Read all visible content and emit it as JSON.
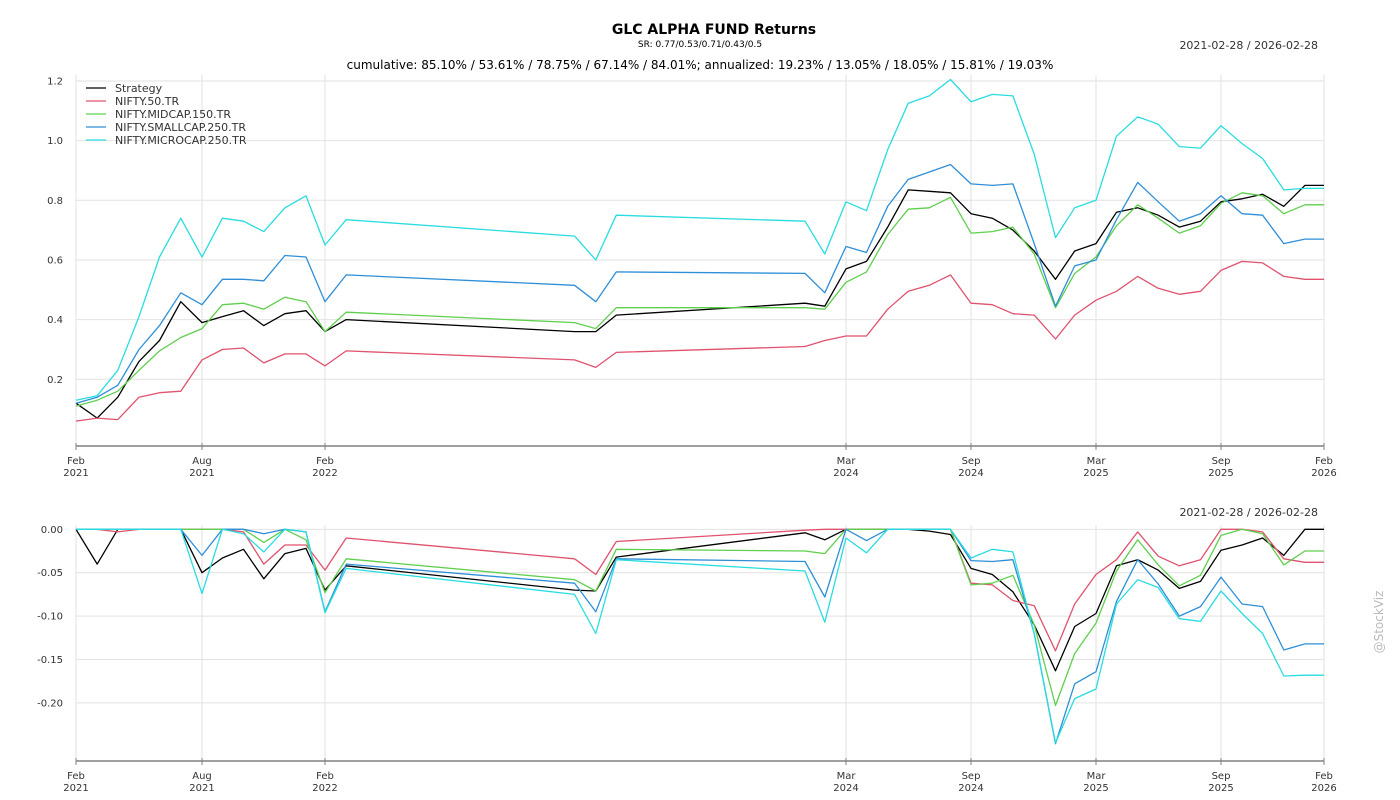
{
  "title": "GLC ALPHA FUND Returns",
  "sr_text": "SR: 0.77/0.53/0.71/0.43/0.5",
  "subtitle": "cumulative: 85.10% / 53.61% / 78.75% / 67.14% / 84.01%; annualized: 19.23% / 13.05% / 18.05% / 15.81% / 19.03%",
  "date_range_top": "2021-02-28 / 2026-02-28",
  "date_range_bottom": "2021-02-28 / 2026-02-28",
  "watermark": "@StockViz",
  "chart_data": [
    {
      "type": "line",
      "x": [
        "2021-02-28",
        "2021-03-31",
        "2021-04-30",
        "2021-05-31",
        "2021-06-30",
        "2021-07-31",
        "2021-08-31",
        "2021-09-30",
        "2021-10-31",
        "2021-11-30",
        "2021-12-31",
        "2022-01-31",
        "2022-02-28",
        "2022-03-31",
        "2023-02-28",
        "2023-03-31",
        "2023-04-30",
        "2024-01-31",
        "2024-02-29",
        "2024-03-31",
        "2024-04-30",
        "2024-05-31",
        "2024-06-30",
        "2024-07-31",
        "2024-08-31",
        "2024-09-30",
        "2024-10-31",
        "2024-11-30",
        "2024-12-31",
        "2025-01-31",
        "2025-02-28",
        "2025-03-31",
        "2025-04-30",
        "2025-05-31",
        "2025-06-30",
        "2025-07-31",
        "2025-08-31",
        "2025-09-30",
        "2025-10-31",
        "2025-11-30",
        "2025-12-31",
        "2026-01-31",
        "2026-02-28"
      ],
      "series": [
        {
          "name": "Strategy",
          "color": "#000000",
          "values": [
            0.12,
            0.07,
            0.14,
            0.26,
            0.33,
            0.46,
            0.39,
            0.41,
            0.43,
            0.38,
            0.42,
            0.43,
            0.36,
            0.4,
            0.36,
            0.36,
            0.415,
            0.455,
            0.445,
            0.57,
            0.595,
            0.71,
            0.835,
            0.83,
            0.825,
            0.755,
            0.74,
            0.7,
            0.63,
            0.535,
            0.63,
            0.655,
            0.76,
            0.775,
            0.75,
            0.71,
            0.73,
            0.795,
            0.805,
            0.82,
            0.78,
            0.85,
            0.85
          ]
        },
        {
          "name": "NIFTY.50.TR",
          "color": "#e0526e",
          "values": [
            0.06,
            0.07,
            0.065,
            0.14,
            0.155,
            0.16,
            0.265,
            0.3,
            0.305,
            0.255,
            0.285,
            0.285,
            0.245,
            0.295,
            0.265,
            0.24,
            0.29,
            0.31,
            0.33,
            0.345,
            0.345,
            0.435,
            0.495,
            0.515,
            0.55,
            0.455,
            0.45,
            0.42,
            0.415,
            0.335,
            0.415,
            0.465,
            0.495,
            0.545,
            0.505,
            0.485,
            0.495,
            0.565,
            0.595,
            0.59,
            0.545,
            0.535,
            0.535
          ]
        },
        {
          "name": "NIFTY.MIDCAP.150.TR",
          "color": "#5fcf4d",
          "values": [
            0.11,
            0.13,
            0.16,
            0.23,
            0.295,
            0.34,
            0.37,
            0.45,
            0.455,
            0.435,
            0.475,
            0.46,
            0.36,
            0.425,
            0.39,
            0.37,
            0.44,
            0.44,
            0.435,
            0.525,
            0.56,
            0.685,
            0.77,
            0.775,
            0.81,
            0.69,
            0.695,
            0.71,
            0.62,
            0.44,
            0.555,
            0.61,
            0.715,
            0.785,
            0.74,
            0.69,
            0.715,
            0.79,
            0.825,
            0.815,
            0.755,
            0.785,
            0.785
          ]
        },
        {
          "name": "NIFTY.SMALLCAP.250.TR",
          "color": "#2e8fd8",
          "values": [
            0.12,
            0.14,
            0.18,
            0.3,
            0.38,
            0.49,
            0.45,
            0.535,
            0.535,
            0.53,
            0.615,
            0.61,
            0.46,
            0.55,
            0.515,
            0.46,
            0.56,
            0.555,
            0.49,
            0.645,
            0.625,
            0.78,
            0.87,
            0.895,
            0.92,
            0.855,
            0.85,
            0.855,
            0.655,
            0.445,
            0.58,
            0.6,
            0.735,
            0.86,
            0.795,
            0.73,
            0.755,
            0.815,
            0.755,
            0.75,
            0.655,
            0.67,
            0.67
          ]
        },
        {
          "name": "NIFTY.MICROCAP.250.TR",
          "color": "#29dce0",
          "values": [
            0.13,
            0.145,
            0.23,
            0.41,
            0.61,
            0.74,
            0.61,
            0.74,
            0.73,
            0.695,
            0.775,
            0.815,
            0.65,
            0.735,
            0.68,
            0.6,
            0.75,
            0.73,
            0.62,
            0.795,
            0.765,
            0.97,
            1.125,
            1.15,
            1.205,
            1.13,
            1.155,
            1.15,
            0.955,
            0.675,
            0.775,
            0.8,
            1.015,
            1.08,
            1.055,
            0.98,
            0.975,
            1.05,
            0.99,
            0.94,
            0.835,
            0.84,
            0.84
          ]
        }
      ],
      "ylim": [
        0.03,
        1.22
      ],
      "yticks": [
        "0.2",
        "0.4",
        "0.6",
        "0.8",
        "1.0",
        "1.2"
      ],
      "xticks": [
        {
          "month": "Feb",
          "year": "2021"
        },
        {
          "month": "Aug",
          "year": "2021"
        },
        {
          "month": "Feb",
          "year": "2022"
        },
        {
          "month": "Mar",
          "year": "2024"
        },
        {
          "month": "Sep",
          "year": "2024"
        },
        {
          "month": "Mar",
          "year": "2025"
        },
        {
          "month": "Sep",
          "year": "2025"
        },
        {
          "month": "Feb",
          "year": "2026"
        }
      ],
      "grid": true,
      "legend": "top-left"
    },
    {
      "type": "line",
      "x": [
        "2021-02-28",
        "2021-03-31",
        "2021-04-30",
        "2021-05-31",
        "2021-06-30",
        "2021-07-31",
        "2021-08-31",
        "2021-09-30",
        "2021-10-31",
        "2021-11-30",
        "2021-12-31",
        "2022-01-31",
        "2022-02-28",
        "2022-03-31",
        "2023-02-28",
        "2023-03-31",
        "2023-04-30",
        "2024-01-31",
        "2024-02-29",
        "2024-03-31",
        "2024-04-30",
        "2024-05-31",
        "2024-06-30",
        "2024-07-31",
        "2024-08-31",
        "2024-09-30",
        "2024-10-31",
        "2024-11-30",
        "2024-12-31",
        "2025-01-31",
        "2025-02-28",
        "2025-03-31",
        "2025-04-30",
        "2025-05-31",
        "2025-06-30",
        "2025-07-31",
        "2025-08-31",
        "2025-09-30",
        "2025-10-31",
        "2025-11-30",
        "2025-12-31",
        "2026-01-31",
        "2026-02-28"
      ],
      "series": [
        {
          "name": "Strategy",
          "color": "#000000",
          "values": [
            0,
            -0.04,
            0,
            0,
            0,
            0,
            -0.05,
            -0.033,
            -0.023,
            -0.057,
            -0.028,
            -0.022,
            -0.07,
            -0.042,
            -0.07,
            -0.071,
            -0.032,
            -0.004,
            -0.012,
            0,
            0,
            0,
            0,
            -0.002,
            -0.006,
            -0.045,
            -0.052,
            -0.072,
            -0.11,
            -0.163,
            -0.112,
            -0.097,
            -0.042,
            -0.035,
            -0.047,
            -0.068,
            -0.06,
            -0.024,
            -0.018,
            -0.01,
            -0.03,
            0,
            0
          ]
        },
        {
          "name": "NIFTY.50.TR",
          "color": "#e0526e",
          "values": [
            0,
            0,
            -0.003,
            0,
            0,
            0,
            0,
            0,
            -0.003,
            -0.04,
            -0.018,
            -0.018,
            -0.047,
            -0.01,
            -0.034,
            -0.052,
            -0.014,
            -0.001,
            0,
            0,
            0,
            0,
            0,
            0,
            0,
            -0.062,
            -0.064,
            -0.082,
            -0.088,
            -0.14,
            -0.086,
            -0.052,
            -0.035,
            -0.003,
            -0.031,
            -0.042,
            -0.035,
            0,
            0,
            -0.003,
            -0.034,
            -0.038,
            -0.038
          ]
        },
        {
          "name": "NIFTY.MIDCAP.150.TR",
          "color": "#5fcf4d",
          "values": [
            0,
            0,
            0,
            0,
            0,
            0,
            0,
            0,
            0,
            -0.015,
            0,
            -0.012,
            -0.073,
            -0.034,
            -0.058,
            -0.071,
            -0.023,
            -0.025,
            -0.028,
            0,
            0,
            0,
            0,
            0,
            0,
            -0.064,
            -0.062,
            -0.053,
            -0.11,
            -0.203,
            -0.143,
            -0.108,
            -0.048,
            -0.012,
            -0.041,
            -0.065,
            -0.053,
            -0.007,
            0,
            -0.005,
            -0.041,
            -0.025,
            -0.025
          ]
        },
        {
          "name": "NIFTY.SMALLCAP.250.TR",
          "color": "#2e8fd8",
          "values": [
            0,
            0,
            0,
            0,
            0,
            0,
            -0.03,
            0,
            0,
            -0.005,
            0,
            -0.003,
            -0.095,
            -0.04,
            -0.062,
            -0.095,
            -0.034,
            -0.037,
            -0.078,
            0,
            -0.013,
            0,
            0,
            0,
            0,
            -0.036,
            -0.037,
            -0.035,
            -0.12,
            -0.247,
            -0.178,
            -0.164,
            -0.083,
            -0.035,
            -0.063,
            -0.1,
            -0.089,
            -0.055,
            -0.086,
            -0.089,
            -0.139,
            -0.132,
            -0.132
          ]
        },
        {
          "name": "NIFTY.MICROCAP.250.TR",
          "color": "#29dce0",
          "values": [
            0,
            0,
            0,
            0,
            0,
            0,
            -0.074,
            0,
            -0.005,
            -0.026,
            0,
            -0.003,
            -0.096,
            -0.045,
            -0.075,
            -0.12,
            -0.035,
            -0.048,
            -0.107,
            -0.01,
            -0.027,
            0,
            0,
            0,
            0,
            -0.033,
            -0.023,
            -0.026,
            -0.12,
            -0.246,
            -0.195,
            -0.184,
            -0.086,
            -0.058,
            -0.067,
            -0.103,
            -0.106,
            -0.071,
            -0.097,
            -0.12,
            -0.169,
            -0.168,
            -0.168
          ]
        }
      ],
      "ylim": [
        -0.26,
        0.005
      ],
      "yticks": [
        "-0.20",
        "-0.15",
        "-0.10",
        "-0.05",
        "0.00"
      ],
      "xticks": [
        {
          "month": "Feb",
          "year": "2021"
        },
        {
          "month": "Aug",
          "year": "2021"
        },
        {
          "month": "Feb",
          "year": "2022"
        },
        {
          "month": "Mar",
          "year": "2024"
        },
        {
          "month": "Sep",
          "year": "2024"
        },
        {
          "month": "Mar",
          "year": "2025"
        },
        {
          "month": "Sep",
          "year": "2025"
        },
        {
          "month": "Feb",
          "year": "2026"
        }
      ],
      "grid": true,
      "legend": "none"
    }
  ]
}
